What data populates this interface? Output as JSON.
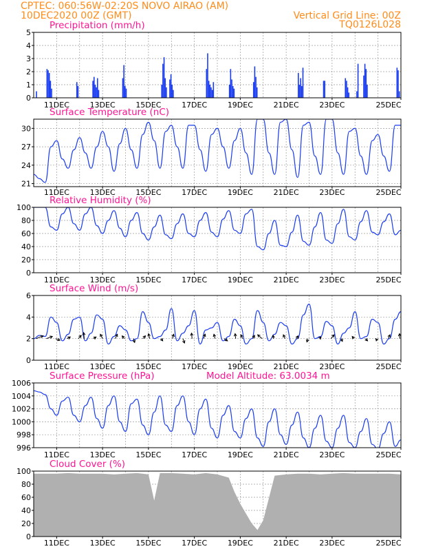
{
  "header": {
    "station": "CPTEC:   060:56W-02:20S   NOVO AIRAO (AM)",
    "date": "10DEC2020 00Z (GMT)",
    "grid_note": "Vertical Grid Line: 00Z",
    "code": "TQ0126L028"
  },
  "colors": {
    "header": "#ff8c1a",
    "title": "#ff1493",
    "line": "#1a3cf0",
    "bar": "#1a3cf0",
    "cloud": "#b0b0b0",
    "grid": "#9a9a9a"
  },
  "chart_data": [
    {
      "type": "bar",
      "id": "precip",
      "title": "Precipitation (mm/h)",
      "x_tick_labels": [
        "11DEC",
        "13DEC",
        "15DEC",
        "17DEC",
        "19DEC",
        "21DEC",
        "23DEC",
        "25DEC"
      ],
      "ylim": [
        0,
        5
      ],
      "y_ticks": [
        0,
        1,
        2,
        3,
        4,
        5
      ],
      "x_days": [
        0.12,
        0.58,
        0.63,
        0.68,
        0.73,
        0.78,
        1.88,
        1.93,
        2.58,
        2.63,
        2.68,
        2.73,
        2.78,
        2.83,
        3.88,
        3.93,
        3.98,
        4.03,
        5.58,
        5.63,
        5.68,
        5.73,
        5.78,
        5.93,
        5.98,
        6.03,
        6.08,
        7.53,
        7.58,
        7.63,
        7.68,
        7.73,
        7.78,
        7.83,
        8.53,
        8.58,
        8.63,
        8.68,
        8.73,
        9.58,
        9.63,
        9.68,
        9.73,
        11.53,
        11.58,
        11.63,
        11.68,
        11.73,
        12.63,
        12.68,
        13.58,
        13.63,
        13.68,
        13.73,
        14.08,
        14.13,
        14.38,
        14.43,
        14.48,
        14.53,
        15.83,
        15.88,
        15.93
      ],
      "values": [
        0.5,
        2.2,
        2.1,
        1.9,
        1.3,
        0.7,
        1.2,
        0.9,
        1.3,
        1.6,
        1.0,
        0.8,
        1.5,
        0.6,
        1.5,
        2.5,
        0.9,
        0.7,
        1.0,
        2.6,
        3.1,
        1.5,
        0.8,
        1.4,
        1.8,
        1.0,
        0.6,
        2.2,
        3.4,
        1.3,
        1.0,
        0.8,
        0.6,
        1.2,
        1.0,
        2.2,
        1.4,
        0.9,
        0.7,
        1.2,
        2.4,
        1.6,
        0.8,
        1.9,
        1.0,
        1.5,
        0.9,
        2.3,
        1.3,
        1.3,
        1.5,
        1.3,
        0.8,
        0.4,
        0.5,
        2.6,
        1.7,
        2.6,
        2.2,
        1.0,
        2.3,
        2.1,
        0.5
      ]
    },
    {
      "type": "line",
      "id": "temp",
      "title": "Surface Temperature (nC)",
      "x_tick_labels": [
        "11DEC",
        "13DEC",
        "15DEC",
        "17DEC",
        "19DEC",
        "21DEC",
        "23DEC",
        "25DEC"
      ],
      "ylim": [
        20.5,
        31.5
      ],
      "y_ticks": [
        21,
        24,
        27,
        30
      ],
      "series": [
        {
          "x_days": [
            0,
            0.25,
            0.5,
            0.75,
            1.0,
            1.25,
            1.5,
            1.75,
            2.0,
            2.25,
            2.5,
            2.75,
            3.0,
            3.25,
            3.5,
            3.75,
            4.0,
            4.25,
            4.5,
            4.75,
            5.0,
            5.25,
            5.5,
            5.75,
            6.0,
            6.25,
            6.5,
            6.75,
            7.0,
            7.25,
            7.5,
            7.75,
            8.0,
            8.25,
            8.5,
            8.75,
            9.0,
            9.25,
            9.5,
            9.75,
            10.0,
            10.25,
            10.5,
            10.75,
            11.0,
            11.25,
            11.5,
            11.75,
            12.0,
            12.25,
            12.5,
            12.75,
            13.0,
            13.25,
            13.5,
            13.75,
            14.0,
            14.25,
            14.5,
            14.75,
            15.0,
            15.25,
            15.5,
            15.75,
            16.0
          ],
          "values": [
            22.5,
            21.8,
            21.2,
            27.0,
            28.0,
            25.0,
            23.5,
            26.5,
            28.5,
            26.0,
            23.5,
            27.0,
            29.5,
            27.0,
            23.0,
            27.5,
            30.0,
            26.5,
            23.5,
            29.0,
            31.0,
            28.0,
            23.5,
            29.5,
            30.5,
            27.0,
            23.5,
            30.5,
            30.5,
            26.5,
            23.0,
            29.0,
            30.0,
            27.0,
            23.5,
            28.0,
            30.0,
            26.0,
            22.5,
            31.5,
            31.5,
            26.0,
            22.5,
            31.0,
            31.5,
            26.5,
            22.0,
            30.5,
            31.0,
            25.5,
            22.5,
            31.5,
            31.5,
            26.0,
            22.5,
            29.5,
            30.0,
            25.5,
            22.5,
            28.0,
            29.0,
            25.5,
            23.0,
            30.5,
            30.5
          ]
        }
      ]
    },
    {
      "type": "line",
      "id": "rh",
      "title": "Relative Humidity (%)",
      "x_tick_labels": [
        "11DEC",
        "13DEC",
        "15DEC",
        "17DEC",
        "19DEC",
        "21DEC",
        "23DEC",
        "25DEC"
      ],
      "ylim": [
        0,
        100
      ],
      "y_ticks": [
        0,
        20,
        40,
        60,
        80,
        100
      ],
      "series": [
        {
          "x_days": [
            0,
            0.25,
            0.5,
            0.75,
            1.0,
            1.25,
            1.5,
            1.75,
            2.0,
            2.25,
            2.5,
            2.75,
            3.0,
            3.25,
            3.5,
            3.75,
            4.0,
            4.25,
            4.5,
            4.75,
            5.0,
            5.25,
            5.5,
            5.75,
            6.0,
            6.25,
            6.5,
            6.75,
            7.0,
            7.25,
            7.5,
            7.75,
            8.0,
            8.25,
            8.5,
            8.75,
            9.0,
            9.25,
            9.5,
            9.75,
            10.0,
            10.25,
            10.5,
            10.75,
            11.0,
            11.25,
            11.5,
            11.75,
            12.0,
            12.25,
            12.5,
            12.75,
            13.0,
            13.25,
            13.5,
            13.75,
            14.0,
            14.25,
            14.5,
            14.75,
            15.0,
            15.25,
            15.5,
            15.75,
            16.0
          ],
          "values": [
            100,
            100,
            100,
            70,
            65,
            90,
            100,
            75,
            65,
            90,
            100,
            72,
            60,
            80,
            95,
            68,
            55,
            80,
            92,
            60,
            50,
            70,
            88,
            58,
            52,
            75,
            90,
            60,
            55,
            80,
            92,
            62,
            55,
            82,
            95,
            65,
            60,
            90,
            97,
            40,
            35,
            60,
            80,
            42,
            40,
            62,
            88,
            48,
            42,
            70,
            92,
            50,
            45,
            75,
            97,
            55,
            50,
            78,
            95,
            62,
            58,
            78,
            90,
            58,
            65
          ]
        }
      ]
    },
    {
      "type": "line",
      "id": "wind",
      "title": "Surface Wind (m/s)",
      "x_tick_labels": [
        "11DEC",
        "13DEC",
        "15DEC",
        "17DEC",
        "19DEC",
        "21DEC",
        "23DEC",
        "25DEC"
      ],
      "ylim": [
        0,
        6
      ],
      "y_ticks": [
        0,
        2,
        4,
        6
      ],
      "series": [
        {
          "x_days": [
            0,
            0.25,
            0.5,
            0.75,
            1.0,
            1.25,
            1.5,
            1.75,
            2.0,
            2.25,
            2.5,
            2.75,
            3.0,
            3.25,
            3.5,
            3.75,
            4.0,
            4.25,
            4.5,
            4.75,
            5.0,
            5.25,
            5.5,
            5.75,
            6.0,
            6.25,
            6.5,
            6.75,
            7.0,
            7.25,
            7.5,
            7.75,
            8.0,
            8.25,
            8.5,
            8.75,
            9.0,
            9.25,
            9.5,
            9.75,
            10.0,
            10.25,
            10.5,
            10.75,
            11.0,
            11.25,
            11.5,
            11.75,
            12.0,
            12.25,
            12.5,
            12.75,
            13.0,
            13.25,
            13.5,
            13.75,
            14.0,
            14.25,
            14.5,
            14.75,
            15.0,
            15.25,
            15.5,
            15.75,
            16.0
          ],
          "values": [
            2.0,
            2.3,
            2.2,
            4.0,
            3.5,
            1.8,
            2.4,
            3.8,
            4.0,
            1.8,
            2.5,
            4.2,
            3.8,
            1.5,
            2.2,
            3.2,
            2.8,
            1.8,
            2.0,
            4.5,
            3.5,
            2.0,
            2.2,
            2.8,
            4.8,
            1.8,
            2.5,
            3.2,
            4.6,
            1.5,
            2.8,
            3.0,
            3.5,
            1.8,
            2.2,
            3.8,
            3.2,
            1.5,
            2.0,
            4.6,
            3.5,
            1.8,
            2.4,
            3.5,
            3.2,
            1.5,
            2.0,
            4.2,
            5.2,
            2.0,
            2.2,
            3.6,
            3.2,
            1.5,
            2.5,
            3.0,
            4.5,
            2.0,
            2.2,
            3.8,
            3.5,
            1.5,
            2.0,
            3.8,
            4.5
          ]
        }
      ],
      "barbs": [
        {
          "x": 0.1,
          "u": 2.6,
          "v": 1.0
        },
        {
          "x": 0.55,
          "u": 2.2,
          "v": 0.8
        },
        {
          "x": 0.95,
          "u": 1.6,
          "v": -0.6
        },
        {
          "x": 1.45,
          "u": 1.2,
          "v": 0.6
        },
        {
          "x": 1.95,
          "u": 1.0,
          "v": 1.2
        },
        {
          "x": 2.2,
          "u": -0.2,
          "v": 2.2
        },
        {
          "x": 2.6,
          "u": 1.0,
          "v": 0.6
        },
        {
          "x": 3.0,
          "u": -0.8,
          "v": 1.6
        },
        {
          "x": 3.55,
          "u": 0.8,
          "v": 1.6
        },
        {
          "x": 3.95,
          "u": -0.8,
          "v": 1.0
        },
        {
          "x": 4.35,
          "u": 0.4,
          "v": -1.4
        },
        {
          "x": 4.75,
          "u": 1.0,
          "v": 1.0
        },
        {
          "x": 5.05,
          "u": -0.4,
          "v": 1.8
        },
        {
          "x": 5.55,
          "u": 0.6,
          "v": -0.8
        },
        {
          "x": 6.05,
          "u": 0.4,
          "v": 1.6
        },
        {
          "x": 6.5,
          "u": 0.6,
          "v": -1.6
        },
        {
          "x": 6.9,
          "u": -0.2,
          "v": 2.0
        },
        {
          "x": 7.4,
          "u": 0.6,
          "v": 1.6
        },
        {
          "x": 7.9,
          "u": -0.4,
          "v": 1.6
        },
        {
          "x": 8.3,
          "u": 1.2,
          "v": -0.8
        },
        {
          "x": 8.8,
          "u": -0.2,
          "v": 1.8
        },
        {
          "x": 9.1,
          "u": -0.6,
          "v": 1.4
        },
        {
          "x": 9.55,
          "u": 0.6,
          "v": 1.2
        },
        {
          "x": 9.95,
          "u": -1.6,
          "v": 1.4
        },
        {
          "x": 10.45,
          "u": -0.2,
          "v": 1.2
        },
        {
          "x": 10.95,
          "u": -0.6,
          "v": 1.4
        },
        {
          "x": 11.45,
          "u": 0.6,
          "v": 1.0
        },
        {
          "x": 11.95,
          "u": -0.4,
          "v": -1.2
        },
        {
          "x": 12.45,
          "u": 0.6,
          "v": 0.6
        },
        {
          "x": 12.95,
          "u": 1.2,
          "v": 1.4
        },
        {
          "x": 13.4,
          "u": 0.4,
          "v": -1.0
        },
        {
          "x": 13.95,
          "u": -0.6,
          "v": 0.8
        },
        {
          "x": 14.45,
          "u": 0.8,
          "v": -0.8
        },
        {
          "x": 14.95,
          "u": -0.2,
          "v": -0.8
        },
        {
          "x": 15.45,
          "u": 0.6,
          "v": 1.4
        },
        {
          "x": 15.95,
          "u": -0.1,
          "v": 1.8
        }
      ]
    },
    {
      "type": "line",
      "id": "pressure",
      "title": "Surface Pressure (hPa)",
      "annotation": "Model Altitude: 63.0034 m",
      "x_tick_labels": [
        "11DEC",
        "13DEC",
        "15DEC",
        "17DEC",
        "19DEC",
        "21DEC",
        "23DEC",
        "25DEC"
      ],
      "ylim": [
        996,
        1006
      ],
      "y_ticks": [
        996,
        998,
        1000,
        1002,
        1004,
        1006
      ],
      "series": [
        {
          "x_days": [
            0,
            0.25,
            0.5,
            0.75,
            1.0,
            1.25,
            1.5,
            1.75,
            2.0,
            2.25,
            2.5,
            2.75,
            3.0,
            3.25,
            3.5,
            3.75,
            4.0,
            4.25,
            4.5,
            4.75,
            5.0,
            5.25,
            5.5,
            5.75,
            6.0,
            6.25,
            6.5,
            6.75,
            7.0,
            7.25,
            7.5,
            7.75,
            8.0,
            8.25,
            8.5,
            8.75,
            9.0,
            9.25,
            9.5,
            9.75,
            10.0,
            10.25,
            10.5,
            10.75,
            11.0,
            11.25,
            11.5,
            11.75,
            12.0,
            12.25,
            12.5,
            12.75,
            13.0,
            13.25,
            13.5,
            13.75,
            14.0,
            14.25,
            14.5,
            14.75,
            15.0,
            15.25,
            15.5,
            15.75,
            16.0
          ],
          "values": [
            1004.8,
            1004.6,
            1004.2,
            1002.0,
            1001.0,
            1003.2,
            1003.8,
            1001.0,
            1000.0,
            1002.5,
            1003.8,
            1000.5,
            999.0,
            1002.5,
            1004.0,
            1000.0,
            998.5,
            1002.8,
            1003.5,
            999.5,
            998.0,
            1001.5,
            1004.0,
            999.5,
            998.5,
            1002.5,
            1004.0,
            1000.0,
            998.0,
            1002.0,
            1003.5,
            999.0,
            997.5,
            1001.0,
            1002.5,
            998.5,
            997.5,
            1000.5,
            1002.0,
            997.5,
            996.2,
            1000.0,
            1002.0,
            998.0,
            996.5,
            999.5,
            1001.5,
            997.5,
            996.0,
            999.0,
            1001.0,
            997.0,
            996.0,
            999.0,
            1001.0,
            996.8,
            996.0,
            998.5,
            1000.5,
            996.5,
            995.8,
            998.2,
            1000.0,
            996.2,
            997.2
          ]
        }
      ]
    },
    {
      "type": "area",
      "id": "cloud",
      "title": "Cloud Cover (%)",
      "x_tick_labels": [
        "11DEC",
        "13DEC",
        "15DEC",
        "17DEC",
        "19DEC",
        "21DEC",
        "23DEC",
        "25DEC"
      ],
      "ylim": [
        0,
        100
      ],
      "y_ticks": [
        0,
        20,
        40,
        60,
        80,
        100
      ],
      "series": [
        {
          "x_days": [
            0,
            0.5,
            1.0,
            1.5,
            2.0,
            2.5,
            3.0,
            3.5,
            4.0,
            4.5,
            5.0,
            5.25,
            5.5,
            6.0,
            6.5,
            7.0,
            7.5,
            8.0,
            8.5,
            8.75,
            9.0,
            9.25,
            9.5,
            9.75,
            10.0,
            10.5,
            11.0,
            11.5,
            12.0,
            12.5,
            13.0,
            13.5,
            14.0,
            14.5,
            15.0,
            15.5,
            16.0
          ],
          "values": [
            96,
            96,
            96,
            97,
            96,
            96,
            96,
            95,
            96,
            97,
            95,
            55,
            97,
            97,
            96,
            95,
            97,
            95,
            90,
            68,
            50,
            35,
            20,
            10,
            25,
            93,
            95,
            96,
            96,
            95,
            96,
            97,
            96,
            96,
            96,
            96,
            95
          ]
        }
      ]
    }
  ]
}
